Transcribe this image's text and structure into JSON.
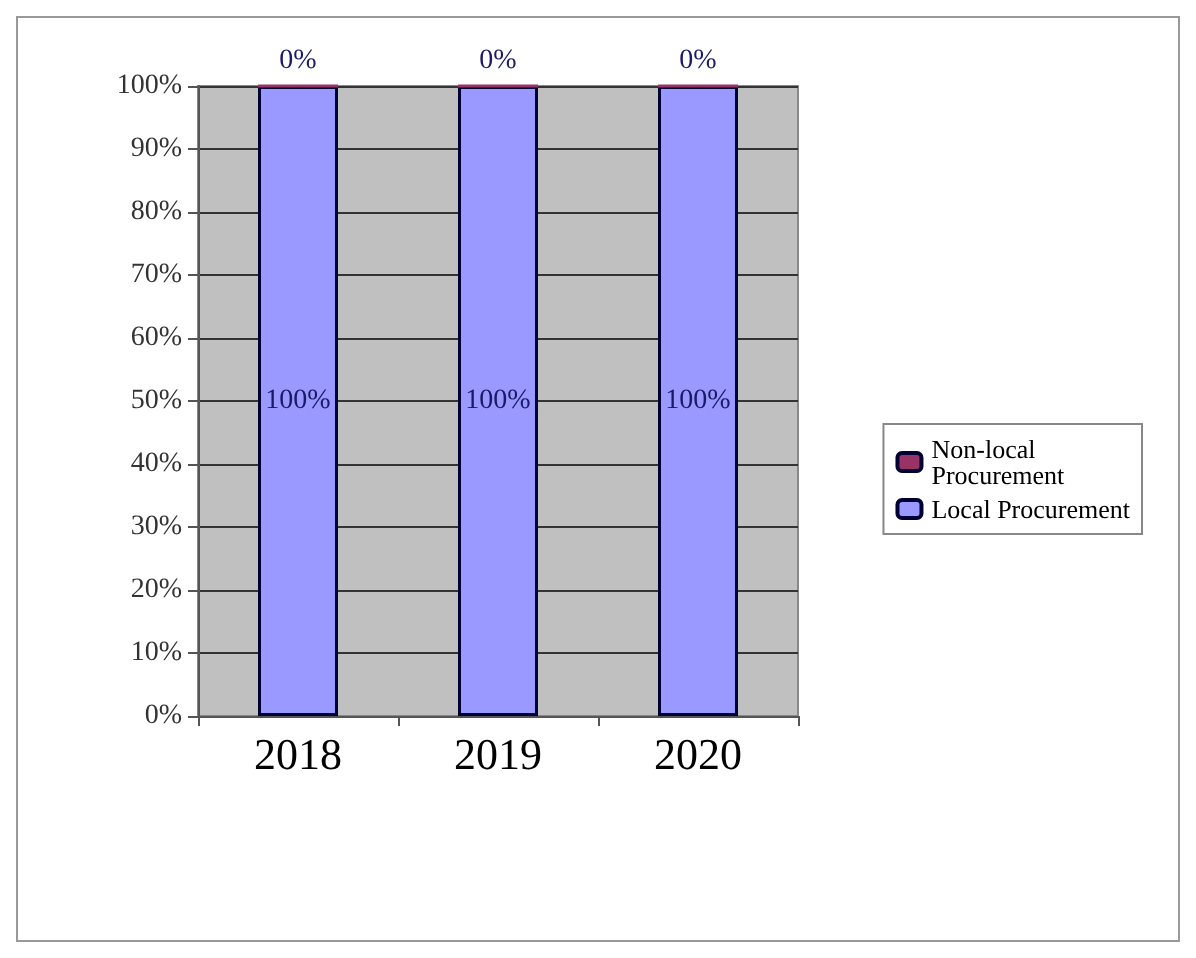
{
  "chart_data": {
    "type": "bar",
    "categories": [
      "2018",
      "2019",
      "2020"
    ],
    "stacked": true,
    "series": [
      {
        "name": "Local Procurement",
        "color": "#9999ff",
        "values": [
          100,
          100,
          100
        ],
        "value_labels": [
          "100%",
          "100%",
          "100%"
        ]
      },
      {
        "name": "Non-local Procurement",
        "color": "#993366",
        "values": [
          0,
          0,
          0
        ],
        "value_labels": [
          "0%",
          "0%",
          "0%"
        ]
      }
    ],
    "ylim": [
      0,
      100
    ],
    "yticks": [
      {
        "value": 0,
        "label": "0%"
      },
      {
        "value": 10,
        "label": "10%"
      },
      {
        "value": 20,
        "label": "20%"
      },
      {
        "value": 30,
        "label": "30%"
      },
      {
        "value": 40,
        "label": "40%"
      },
      {
        "value": 50,
        "label": "50%"
      },
      {
        "value": 60,
        "label": "60%"
      },
      {
        "value": 70,
        "label": "70%"
      },
      {
        "value": 80,
        "label": "80%"
      },
      {
        "value": 90,
        "label": "90%"
      },
      {
        "value": 100,
        "label": "100%"
      }
    ],
    "grid": "y",
    "legend": "right"
  }
}
